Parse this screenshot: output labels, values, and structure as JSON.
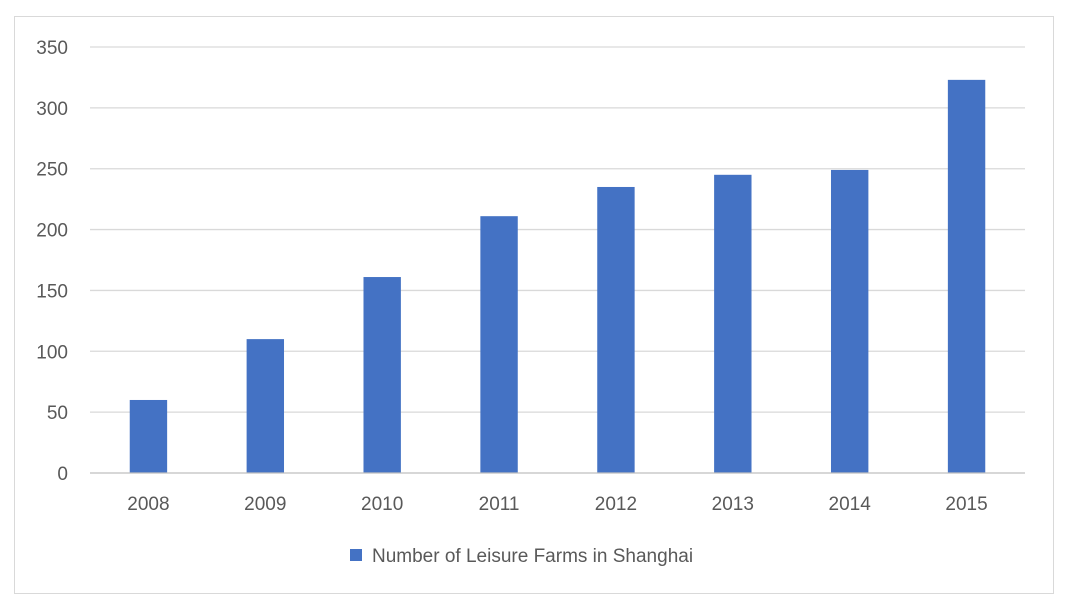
{
  "chart_data": {
    "type": "bar",
    "categories": [
      "2008",
      "2009",
      "2010",
      "2011",
      "2012",
      "2013",
      "2014",
      "2015"
    ],
    "series": [
      {
        "name": "Number of Leisure Farms in Shanghai",
        "values": [
          60,
          110,
          161,
          211,
          235,
          245,
          249,
          323
        ]
      }
    ],
    "ylim": [
      0,
      350
    ],
    "yticks": [
      0,
      50,
      100,
      150,
      200,
      250,
      300,
      350
    ],
    "grid": true,
    "legend": "bottom",
    "colors": {
      "bar": "#4472c4",
      "grid": "#d9d9d9",
      "axis": "#bfbfbf",
      "text": "#595959"
    }
  }
}
